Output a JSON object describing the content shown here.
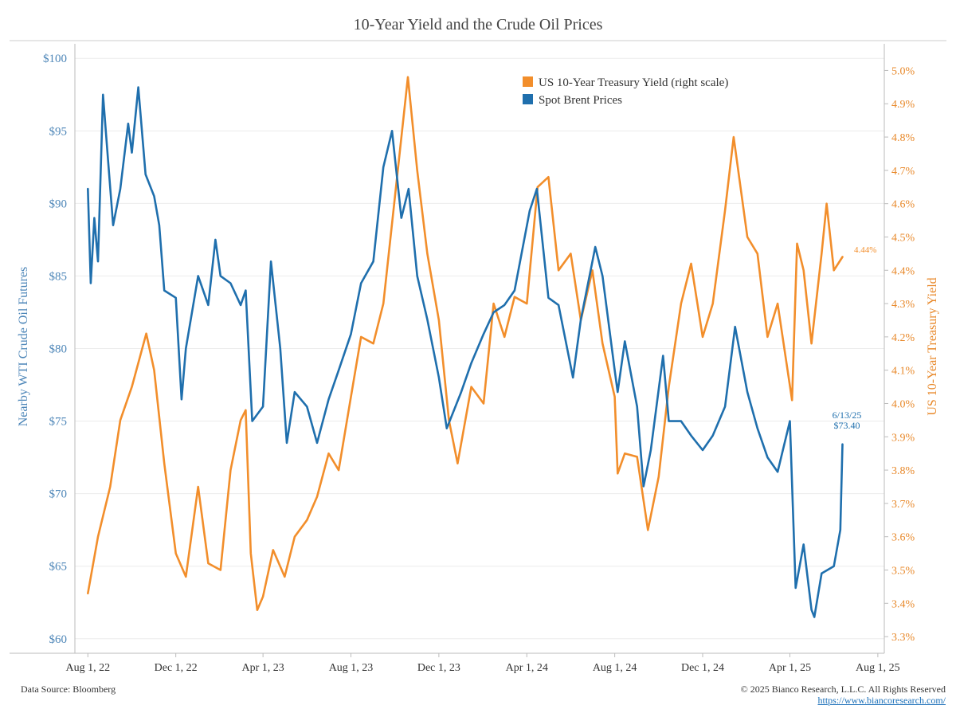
{
  "chart_data": {
    "type": "line",
    "title": "10-Year Yield and the Crude Oil Prices",
    "y_left": {
      "label": "Nearby WTI Crude Oil Futures",
      "range": [
        59,
        101
      ],
      "ticks": [
        "$60",
        "$65",
        "$70",
        "$75",
        "$80",
        "$85",
        "$90",
        "$95",
        "$100"
      ]
    },
    "y_right": {
      "label": "US 10-Year Treasury Yield",
      "range": [
        3.25,
        5.08
      ],
      "ticks": [
        "3.3%",
        "3.4%",
        "3.5%",
        "3.6%",
        "3.7%",
        "3.8%",
        "3.9%",
        "4.0%",
        "4.1%",
        "4.2%",
        "4.3%",
        "4.4%",
        "4.5%",
        "4.6%",
        "4.7%",
        "4.8%",
        "4.9%",
        "5.0%"
      ]
    },
    "x_ticks": [
      "Aug 1, 22",
      "Dec 1, 22",
      "Apr 1, 23",
      "Aug 1, 23",
      "Dec 1, 23",
      "Apr 1, 24",
      "Aug 1, 24",
      "Dec 1, 24",
      "Apr 1, 25",
      "Aug 1, 25"
    ],
    "grid": "horizontal",
    "legend_position": "top-right",
    "series": [
      {
        "name": "US 10-Year Treasury Yield (right scale)",
        "axis": "right",
        "color": "#f28e2b",
        "x": [
          "2022-08-01",
          "2022-08-15",
          "2022-09-01",
          "2022-09-15",
          "2022-10-01",
          "2022-10-21",
          "2022-11-01",
          "2022-11-15",
          "2022-12-01",
          "2022-12-15",
          "2023-01-01",
          "2023-01-15",
          "2023-02-01",
          "2023-02-15",
          "2023-03-01",
          "2023-03-08",
          "2023-03-15",
          "2023-03-24",
          "2023-04-01",
          "2023-04-15",
          "2023-05-01",
          "2023-05-15",
          "2023-06-01",
          "2023-06-15",
          "2023-07-01",
          "2023-07-15",
          "2023-08-01",
          "2023-08-15",
          "2023-09-01",
          "2023-09-15",
          "2023-10-01",
          "2023-10-19",
          "2023-11-01",
          "2023-11-15",
          "2023-12-01",
          "2023-12-15",
          "2023-12-27",
          "2024-01-15",
          "2024-02-01",
          "2024-02-15",
          "2024-03-01",
          "2024-03-15",
          "2024-04-01",
          "2024-04-16",
          "2024-05-01",
          "2024-05-15",
          "2024-06-01",
          "2024-06-15",
          "2024-07-01",
          "2024-07-15",
          "2024-08-01",
          "2024-08-05",
          "2024-08-15",
          "2024-09-01",
          "2024-09-16",
          "2024-10-01",
          "2024-10-15",
          "2024-11-01",
          "2024-11-15",
          "2024-12-01",
          "2024-12-15",
          "2025-01-01",
          "2025-01-13",
          "2025-02-01",
          "2025-02-15",
          "2025-03-01",
          "2025-03-15",
          "2025-04-04",
          "2025-04-11",
          "2025-04-20",
          "2025-05-01",
          "2025-05-15",
          "2025-05-22",
          "2025-06-01",
          "2025-06-13"
        ],
        "values": [
          3.43,
          3.6,
          3.75,
          3.95,
          4.05,
          4.21,
          4.1,
          3.82,
          3.55,
          3.48,
          3.75,
          3.52,
          3.5,
          3.8,
          3.95,
          3.98,
          3.55,
          3.38,
          3.42,
          3.56,
          3.48,
          3.6,
          3.65,
          3.72,
          3.85,
          3.8,
          4.02,
          4.2,
          4.18,
          4.3,
          4.62,
          4.98,
          4.7,
          4.45,
          4.25,
          3.95,
          3.82,
          4.05,
          4.0,
          4.3,
          4.2,
          4.32,
          4.3,
          4.65,
          4.68,
          4.4,
          4.45,
          4.25,
          4.4,
          4.18,
          4.02,
          3.79,
          3.85,
          3.84,
          3.62,
          3.78,
          4.05,
          4.3,
          4.42,
          4.2,
          4.3,
          4.58,
          4.8,
          4.5,
          4.45,
          4.2,
          4.3,
          4.01,
          4.48,
          4.4,
          4.18,
          4.45,
          4.6,
          4.4,
          4.44
        ]
      },
      {
        "name": "Spot Brent Prices",
        "axis": "left",
        "color": "#1f6fad",
        "x": [
          "2022-08-01",
          "2022-08-05",
          "2022-08-10",
          "2022-08-15",
          "2022-08-22",
          "2022-08-29",
          "2022-09-05",
          "2022-09-15",
          "2022-09-26",
          "2022-10-01",
          "2022-10-10",
          "2022-10-20",
          "2022-11-01",
          "2022-11-08",
          "2022-11-15",
          "2022-12-01",
          "2022-12-09",
          "2022-12-15",
          "2023-01-01",
          "2023-01-15",
          "2023-01-25",
          "2023-02-01",
          "2023-02-15",
          "2023-03-01",
          "2023-03-08",
          "2023-03-17",
          "2023-04-01",
          "2023-04-12",
          "2023-04-25",
          "2023-05-04",
          "2023-05-15",
          "2023-06-01",
          "2023-06-15",
          "2023-07-01",
          "2023-07-15",
          "2023-08-01",
          "2023-08-15",
          "2023-09-01",
          "2023-09-15",
          "2023-09-27",
          "2023-10-10",
          "2023-10-20",
          "2023-11-01",
          "2023-11-15",
          "2023-12-01",
          "2023-12-12",
          "2024-01-01",
          "2024-01-15",
          "2024-02-01",
          "2024-02-15",
          "2024-03-01",
          "2024-03-15",
          "2024-04-05",
          "2024-04-15",
          "2024-05-01",
          "2024-05-15",
          "2024-06-04",
          "2024-06-15",
          "2024-07-01",
          "2024-07-05",
          "2024-07-15",
          "2024-08-01",
          "2024-08-05",
          "2024-08-15",
          "2024-09-01",
          "2024-09-10",
          "2024-09-20",
          "2024-10-07",
          "2024-10-15",
          "2024-11-01",
          "2024-11-15",
          "2024-12-01",
          "2024-12-15",
          "2025-01-01",
          "2025-01-15",
          "2025-02-01",
          "2025-02-15",
          "2025-03-01",
          "2025-03-15",
          "2025-04-01",
          "2025-04-09",
          "2025-04-20",
          "2025-05-01",
          "2025-05-05",
          "2025-05-15",
          "2025-06-01",
          "2025-06-10",
          "2025-06-13"
        ],
        "values": [
          91.0,
          84.5,
          89.0,
          86.0,
          97.5,
          93.0,
          88.5,
          91.0,
          95.5,
          93.5,
          98.0,
          92.0,
          90.5,
          88.5,
          84.0,
          83.5,
          76.5,
          80.0,
          85.0,
          83.0,
          87.5,
          85.0,
          84.5,
          83.0,
          84.0,
          75.0,
          76.0,
          86.0,
          80.0,
          73.5,
          77.0,
          76.0,
          73.5,
          76.5,
          78.5,
          81.0,
          84.5,
          86.0,
          92.5,
          95.0,
          89.0,
          91.0,
          85.0,
          82.0,
          78.0,
          74.5,
          77.0,
          79.0,
          81.0,
          82.5,
          83.0,
          84.0,
          89.5,
          91.0,
          83.5,
          83.0,
          78.0,
          82.0,
          86.0,
          87.0,
          85.0,
          78.5,
          77.0,
          80.5,
          76.0,
          70.5,
          73.0,
          79.5,
          75.0,
          75.0,
          74.0,
          73.0,
          74.0,
          76.0,
          81.5,
          77.0,
          74.5,
          72.5,
          71.5,
          75.0,
          63.5,
          66.5,
          62.0,
          61.5,
          64.5,
          65.0,
          67.5,
          73.4
        ]
      }
    ],
    "annotations": {
      "oil_end_date": "6/13/25",
      "oil_end_value": "$73.40",
      "yield_end_value": "4.44%"
    }
  },
  "footer": {
    "source": "Data Source: Bloomberg",
    "copyright": "© 2025 Bianco Research, L.L.C. All Rights Reserved",
    "url": "https://www.biancoresearch.com/"
  }
}
